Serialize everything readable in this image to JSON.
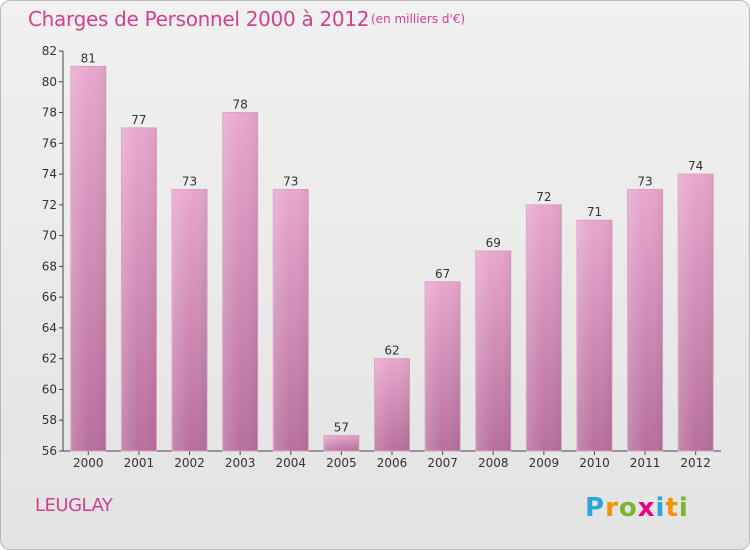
{
  "title": "Charges de Personnel 2000 à 2012",
  "subtitle": "(en milliers d'€)",
  "commune": "LEUGLAY",
  "logo_text": "Proxiti",
  "colors": {
    "title": "#d2418f",
    "bar_top": "#e8a7cd",
    "bar_bottom": "#b7709d",
    "axis": "#444444",
    "grid": "#cccccc"
  },
  "chart_data": {
    "type": "bar",
    "title": "Charges de Personnel 2000 à 2012",
    "xlabel": "",
    "ylabel": "",
    "categories": [
      "2000",
      "2001",
      "2002",
      "2003",
      "2004",
      "2005",
      "2006",
      "2007",
      "2008",
      "2009",
      "2010",
      "2011",
      "2012"
    ],
    "values": [
      81,
      77,
      73,
      78,
      73,
      57,
      62,
      67,
      69,
      72,
      71,
      73,
      74
    ],
    "ylim": [
      56,
      82
    ],
    "yticks": [
      56,
      58,
      60,
      62,
      64,
      66,
      68,
      70,
      72,
      74,
      76,
      78,
      80,
      82
    ],
    "grid": false,
    "legend": "none"
  }
}
